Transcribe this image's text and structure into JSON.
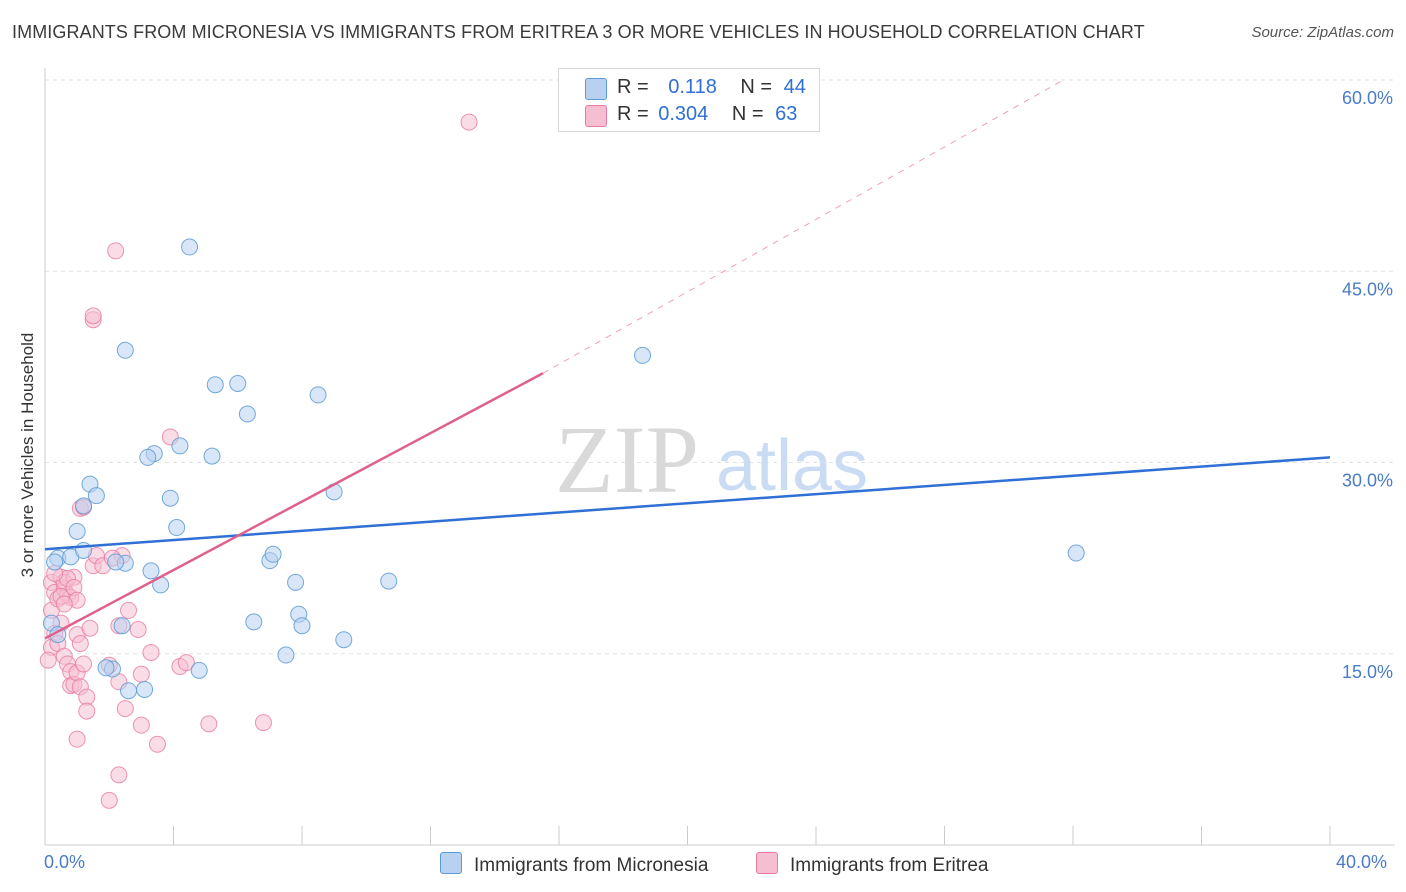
{
  "title": "IMMIGRANTS FROM MICRONESIA VS IMMIGRANTS FROM ERITREA 3 OR MORE VEHICLES IN HOUSEHOLD CORRELATION CHART",
  "source": "Source: ZipAtlas.com",
  "watermark": {
    "zip": "ZIP",
    "atlas": "atlas"
  },
  "legend": {
    "rows": [
      {
        "r_label": "R =",
        "r_value": "0.118",
        "n_label": "N =",
        "n_value": "44"
      },
      {
        "r_label": "R =",
        "r_value": "0.304",
        "n_label": "N =",
        "n_value": "63"
      }
    ]
  },
  "bottom_legend": {
    "micronesia": "Immigrants from Micronesia",
    "eritrea": "Immigrants from Eritrea"
  },
  "x_axis": {
    "min_label": "0.0%",
    "max_label": "40.0%"
  },
  "colors": {
    "micronesia": "#5b9bd5",
    "micronesia_fill": "#b8d1f1",
    "eritrea": "#e77ba0",
    "eritrea_fill": "#f6bfd1",
    "blue_line": "#2f6fd6",
    "pink_line": "#e0608c",
    "tick_text": "#4a7bc8"
  },
  "chart_data": {
    "type": "scatter",
    "title": "IMMIGRANTS FROM MICRONESIA VS IMMIGRANTS FROM ERITREA 3 OR MORE VEHICLES IN HOUSEHOLD CORRELATION CHART",
    "xlabel": "",
    "ylabel": "3 or more Vehicles in Household",
    "xlim": [
      0,
      40
    ],
    "ylim": [
      0,
      61
    ],
    "y_ticks": [
      15,
      30,
      45,
      60
    ],
    "y_tick_labels": [
      "15.0%",
      "30.0%",
      "45.0%",
      "60.0%"
    ],
    "x_tick_values": [
      4,
      8,
      12,
      16,
      20,
      24,
      28,
      32,
      36,
      40
    ],
    "series": [
      {
        "name": "Immigrants from Micronesia",
        "R": 0.118,
        "N": 44,
        "trend": {
          "x": [
            0,
            40
          ],
          "y": [
            23.2,
            30.4
          ]
        },
        "points": [
          [
            0.4,
            22.5
          ],
          [
            0.3,
            22.2
          ],
          [
            0.8,
            22.6
          ],
          [
            1.0,
            24.6
          ],
          [
            1.4,
            28.3
          ],
          [
            1.6,
            27.4
          ],
          [
            1.2,
            26.6
          ],
          [
            1.2,
            23.1
          ],
          [
            2.5,
            22.1
          ],
          [
            2.2,
            22.2
          ],
          [
            2.4,
            17.2
          ],
          [
            2.1,
            13.8
          ],
          [
            1.9,
            13.9
          ],
          [
            2.6,
            12.1
          ],
          [
            3.1,
            12.2
          ],
          [
            2.5,
            38.8
          ],
          [
            3.4,
            30.7
          ],
          [
            3.3,
            21.5
          ],
          [
            3.6,
            20.4
          ],
          [
            3.2,
            30.4
          ],
          [
            3.9,
            27.2
          ],
          [
            4.1,
            24.9
          ],
          [
            4.2,
            31.3
          ],
          [
            4.5,
            46.9
          ],
          [
            4.8,
            13.7
          ],
          [
            5.3,
            36.1
          ],
          [
            5.2,
            30.5
          ],
          [
            6.0,
            36.2
          ],
          [
            6.3,
            33.8
          ],
          [
            6.5,
            17.5
          ],
          [
            7.0,
            22.3
          ],
          [
            7.1,
            22.8
          ],
          [
            7.5,
            14.9
          ],
          [
            7.8,
            20.6
          ],
          [
            7.9,
            18.1
          ],
          [
            8.0,
            17.2
          ],
          [
            8.5,
            35.3
          ],
          [
            9.0,
            27.7
          ],
          [
            9.3,
            16.1
          ],
          [
            10.7,
            20.7
          ],
          [
            18.6,
            38.4
          ],
          [
            32.1,
            22.9
          ],
          [
            0.2,
            17.4
          ],
          [
            0.4,
            16.5
          ]
        ]
      },
      {
        "name": "Immigrants from Eritrea",
        "R": 0.304,
        "N": 63,
        "trend": {
          "x": [
            0,
            15.5
          ],
          "y": [
            16.2,
            37.0
          ]
        },
        "trend_dashed": {
          "x": [
            15.5,
            31.7
          ],
          "y": [
            37.0,
            60.0
          ]
        },
        "points": [
          [
            0.2,
            20.6
          ],
          [
            0.3,
            19.8
          ],
          [
            0.2,
            18.4
          ],
          [
            0.3,
            16.6
          ],
          [
            0.2,
            15.5
          ],
          [
            0.1,
            14.5
          ],
          [
            0.4,
            19.3
          ],
          [
            0.5,
            21.0
          ],
          [
            0.6,
            20.1
          ],
          [
            0.7,
            19.6
          ],
          [
            0.6,
            20.6
          ],
          [
            0.8,
            19.4
          ],
          [
            0.9,
            21.0
          ],
          [
            0.7,
            20.9
          ],
          [
            0.5,
            17.4
          ],
          [
            0.4,
            15.8
          ],
          [
            0.6,
            14.8
          ],
          [
            0.7,
            14.2
          ],
          [
            0.8,
            13.6
          ],
          [
            0.8,
            12.5
          ],
          [
            0.9,
            12.6
          ],
          [
            1.0,
            16.5
          ],
          [
            1.1,
            15.8
          ],
          [
            1.0,
            13.5
          ],
          [
            1.1,
            12.4
          ],
          [
            1.3,
            11.6
          ],
          [
            1.3,
            10.5
          ],
          [
            1.2,
            14.2
          ],
          [
            1.4,
            17.0
          ],
          [
            1.5,
            21.9
          ],
          [
            1.6,
            22.7
          ],
          [
            1.8,
            21.9
          ],
          [
            1.1,
            26.4
          ],
          [
            1.2,
            26.5
          ],
          [
            1.5,
            41.2
          ],
          [
            1.5,
            41.5
          ],
          [
            2.2,
            46.6
          ],
          [
            2.4,
            22.7
          ],
          [
            2.1,
            22.5
          ],
          [
            2.3,
            17.2
          ],
          [
            2.0,
            14.1
          ],
          [
            2.3,
            12.8
          ],
          [
            2.3,
            5.5
          ],
          [
            2.0,
            3.5
          ],
          [
            1.0,
            8.3
          ],
          [
            2.5,
            10.7
          ],
          [
            2.6,
            18.4
          ],
          [
            2.9,
            16.9
          ],
          [
            3.0,
            13.4
          ],
          [
            3.0,
            9.4
          ],
          [
            3.3,
            15.1
          ],
          [
            3.5,
            7.9
          ],
          [
            3.9,
            32.0
          ],
          [
            4.2,
            14.0
          ],
          [
            4.4,
            14.3
          ],
          [
            5.1,
            9.5
          ],
          [
            6.8,
            9.6
          ],
          [
            13.2,
            56.7
          ],
          [
            0.3,
            21.3
          ],
          [
            0.5,
            19.5
          ],
          [
            0.9,
            20.2
          ],
          [
            1.0,
            19.2
          ],
          [
            0.6,
            18.9
          ]
        ]
      }
    ]
  }
}
